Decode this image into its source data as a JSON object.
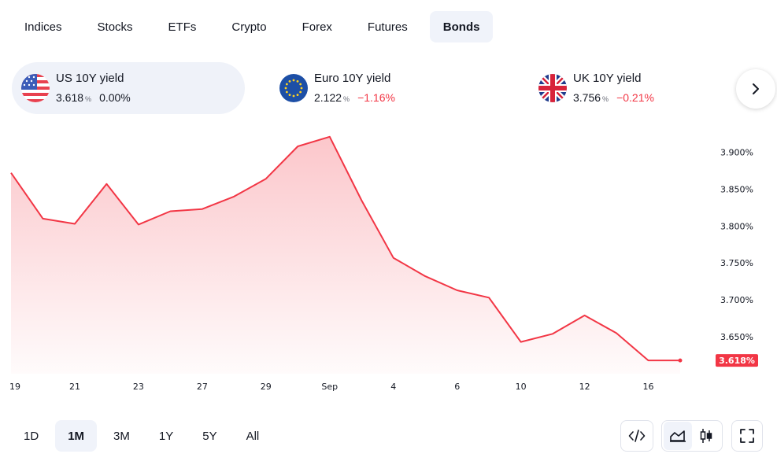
{
  "tabs": [
    "Indices",
    "Stocks",
    "ETFs",
    "Crypto",
    "Forex",
    "Futures",
    "Bonds"
  ],
  "active_tab": "Bonds",
  "cards": [
    {
      "name": "US 10Y yield",
      "value": "3.618",
      "unit": "%",
      "change": "0.00%",
      "negative": false
    },
    {
      "name": "Euro 10Y yield",
      "value": "2.122",
      "unit": "%",
      "change": "−1.16%",
      "negative": true
    },
    {
      "name": "UK 10Y yield",
      "value": "3.756",
      "unit": "%",
      "change": "−0.21%",
      "negative": true
    }
  ],
  "next_icon": "chevron-right-icon",
  "ranges": [
    "1D",
    "1M",
    "3M",
    "1Y",
    "5Y",
    "All"
  ],
  "active_range": "1M",
  "tools": [
    "embed-code-icon",
    "area-chart-icon",
    "candlestick-chart-icon",
    "fullscreen-icon"
  ],
  "colors": {
    "line": "#f23645",
    "accent_bg": "#f0f3fa",
    "negative": "#f23645"
  },
  "chart_data": {
    "type": "area",
    "x_tick_labels": [
      "19",
      "21",
      "23",
      "27",
      "29",
      "Sep",
      "4",
      "6",
      "10",
      "12",
      "16"
    ],
    "y_tick_labels": [
      "3.900%",
      "3.850%",
      "3.800%",
      "3.750%",
      "3.700%",
      "3.650%"
    ],
    "y_ticks": [
      3.9,
      3.85,
      3.8,
      3.75,
      3.7,
      3.65
    ],
    "ylim": [
      3.6,
      3.925
    ],
    "series": [
      {
        "values": [
          3.872,
          3.81,
          3.803,
          3.857,
          3.802,
          3.82,
          3.823,
          3.84,
          3.864,
          3.908,
          3.921,
          3.835,
          3.757,
          3.732,
          3.713,
          3.703,
          3.643,
          3.654,
          3.679,
          3.655,
          3.618,
          3.618
        ]
      }
    ],
    "last_value_label": "3.618%",
    "grid": false
  }
}
